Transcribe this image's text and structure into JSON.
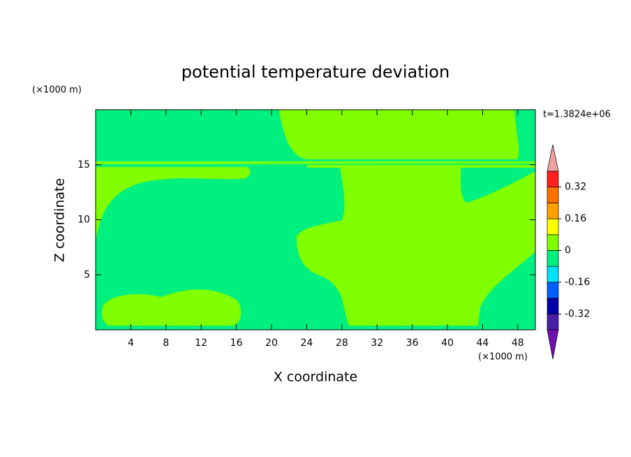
{
  "chart_data": {
    "type": "contour",
    "title": "potential temperature deviation",
    "x_label": "X coordinate",
    "y_label": "Z coordinate",
    "x_unit": "(×1000 m)",
    "y_unit": "(×1000 m)",
    "annotation": "t=1.3824e+06",
    "xlim": [
      0,
      50
    ],
    "xticks": [
      4,
      8,
      12,
      16,
      20,
      24,
      28,
      32,
      36,
      40,
      44,
      48
    ],
    "ylim": [
      0,
      20
    ],
    "yticks": [
      5,
      10,
      15
    ],
    "levels": [
      -0.4,
      -0.32,
      -0.24,
      -0.16,
      -0.08,
      0,
      0.08,
      0.16,
      0.24,
      0.32,
      0.4
    ],
    "colors": [
      "#4a1fa8",
      "#0000a8",
      "#0060ff",
      "#00e0ff",
      "#00f080",
      "#80ff00",
      "#ffff00",
      "#ffa000",
      "#ff7000",
      "#ff2020"
    ],
    "under_color": "#7010b0",
    "over_color": "#f0a0a0",
    "colorbar_ticks": [
      -0.32,
      -0.16,
      0,
      0.16,
      0.32
    ]
  }
}
